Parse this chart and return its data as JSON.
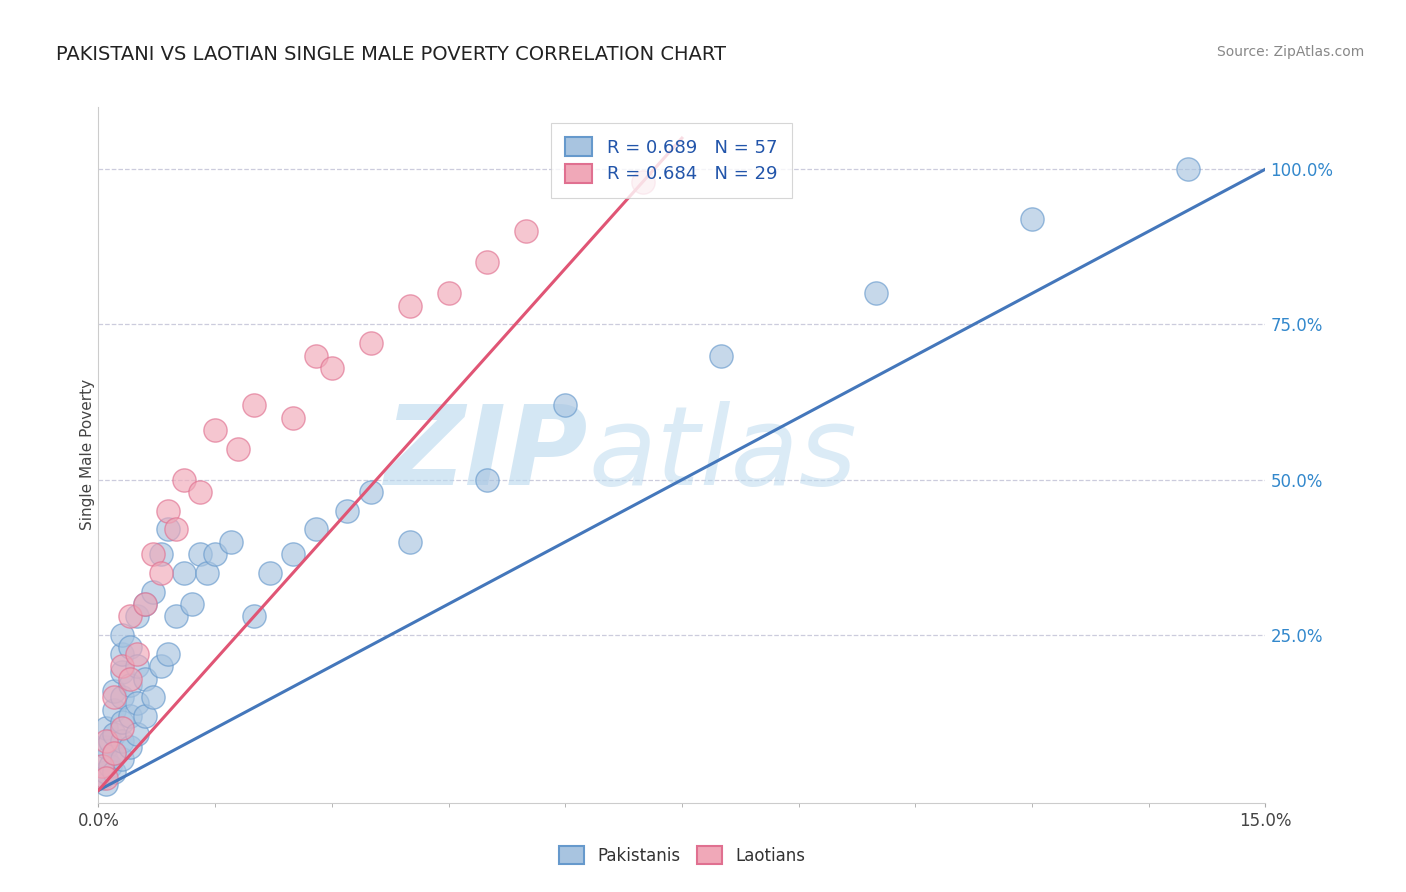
{
  "title": "PAKISTANI VS LAOTIAN SINGLE MALE POVERTY CORRELATION CHART",
  "source_text": "Source: ZipAtlas.com",
  "ylabel": "Single Male Poverty",
  "xlim": [
    0.0,
    0.15
  ],
  "ylim": [
    -0.02,
    1.1
  ],
  "ytick_positions": [
    0.25,
    0.5,
    0.75,
    1.0
  ],
  "pakistani_color": "#A8C4E0",
  "laotian_color": "#F0A8B8",
  "pakistani_edge_color": "#6699CC",
  "laotian_edge_color": "#E07090",
  "pakistani_line_color": "#4477BB",
  "laotian_line_color": "#E05575",
  "R_pakistani": 0.689,
  "N_pakistani": 57,
  "R_laotian": 0.684,
  "N_laotian": 29,
  "background_color": "#FFFFFF",
  "grid_color": "#CCCCDD",
  "watermark_zip": "ZIP",
  "watermark_atlas": "atlas",
  "legend_text_color": "#2255AA",
  "pakistani_x": [
    0.0005,
    0.001,
    0.001,
    0.001,
    0.001,
    0.001,
    0.0015,
    0.0015,
    0.002,
    0.002,
    0.002,
    0.002,
    0.002,
    0.003,
    0.003,
    0.003,
    0.003,
    0.003,
    0.003,
    0.003,
    0.004,
    0.004,
    0.004,
    0.004,
    0.005,
    0.005,
    0.005,
    0.005,
    0.006,
    0.006,
    0.006,
    0.007,
    0.007,
    0.008,
    0.008,
    0.009,
    0.009,
    0.01,
    0.011,
    0.012,
    0.013,
    0.014,
    0.015,
    0.017,
    0.02,
    0.022,
    0.025,
    0.028,
    0.032,
    0.035,
    0.04,
    0.05,
    0.06,
    0.08,
    0.1,
    0.12,
    0.14
  ],
  "pakistani_y": [
    0.02,
    0.01,
    0.03,
    0.05,
    0.07,
    0.1,
    0.04,
    0.08,
    0.03,
    0.06,
    0.09,
    0.13,
    0.16,
    0.05,
    0.08,
    0.11,
    0.15,
    0.19,
    0.22,
    0.25,
    0.07,
    0.12,
    0.17,
    0.23,
    0.09,
    0.14,
    0.2,
    0.28,
    0.12,
    0.18,
    0.3,
    0.15,
    0.32,
    0.2,
    0.38,
    0.22,
    0.42,
    0.28,
    0.35,
    0.3,
    0.38,
    0.35,
    0.38,
    0.4,
    0.28,
    0.35,
    0.38,
    0.42,
    0.45,
    0.48,
    0.4,
    0.5,
    0.62,
    0.7,
    0.8,
    0.92,
    1.0
  ],
  "laotian_x": [
    0.0005,
    0.001,
    0.001,
    0.002,
    0.002,
    0.003,
    0.003,
    0.004,
    0.004,
    0.005,
    0.006,
    0.007,
    0.008,
    0.009,
    0.01,
    0.011,
    0.013,
    0.015,
    0.018,
    0.02,
    0.025,
    0.028,
    0.03,
    0.035,
    0.04,
    0.045,
    0.05,
    0.055,
    0.07
  ],
  "laotian_y": [
    0.04,
    0.02,
    0.08,
    0.06,
    0.15,
    0.1,
    0.2,
    0.18,
    0.28,
    0.22,
    0.3,
    0.38,
    0.35,
    0.45,
    0.42,
    0.5,
    0.48,
    0.58,
    0.55,
    0.62,
    0.6,
    0.7,
    0.68,
    0.72,
    0.78,
    0.8,
    0.85,
    0.9,
    0.98
  ],
  "pk_line_x0": 0.0,
  "pk_line_x1": 0.15,
  "pk_line_y0": 0.0,
  "pk_line_y1": 1.0,
  "la_line_x0": 0.0,
  "la_line_x1": 0.075,
  "la_line_y0": 0.0,
  "la_line_y1": 1.05
}
